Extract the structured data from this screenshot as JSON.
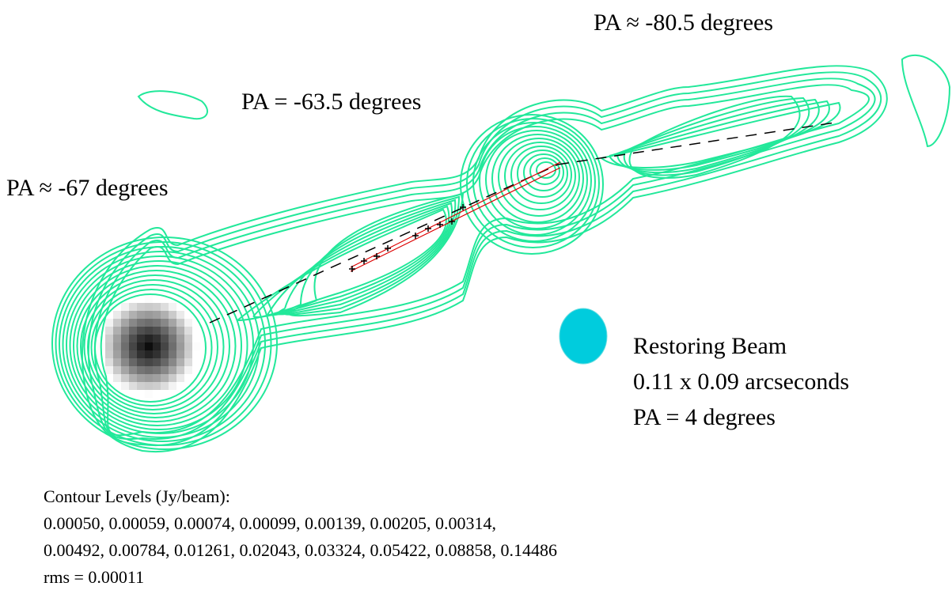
{
  "annotations": {
    "pa_outer": "PA ≈ -80.5 degrees",
    "pa_mid": "PA = -63.5 degrees",
    "pa_inner": "PA ≈ -67 degrees"
  },
  "beam": {
    "lines": [
      "Restoring Beam",
      "0.11 x 0.09 arcseconds",
      "PA = 4 degrees"
    ]
  },
  "contours": {
    "title": "Contour Levels (Jy/beam):",
    "lines": [
      "0.00050, 0.00059, 0.00074, 0.00099, 0.00139, 0.00205, 0.00314,",
      "0.00492, 0.00784, 0.01261, 0.02043, 0.03324, 0.05422, 0.08858, 0.14486"
    ],
    "rms": "rms = 0.00011"
  }
}
